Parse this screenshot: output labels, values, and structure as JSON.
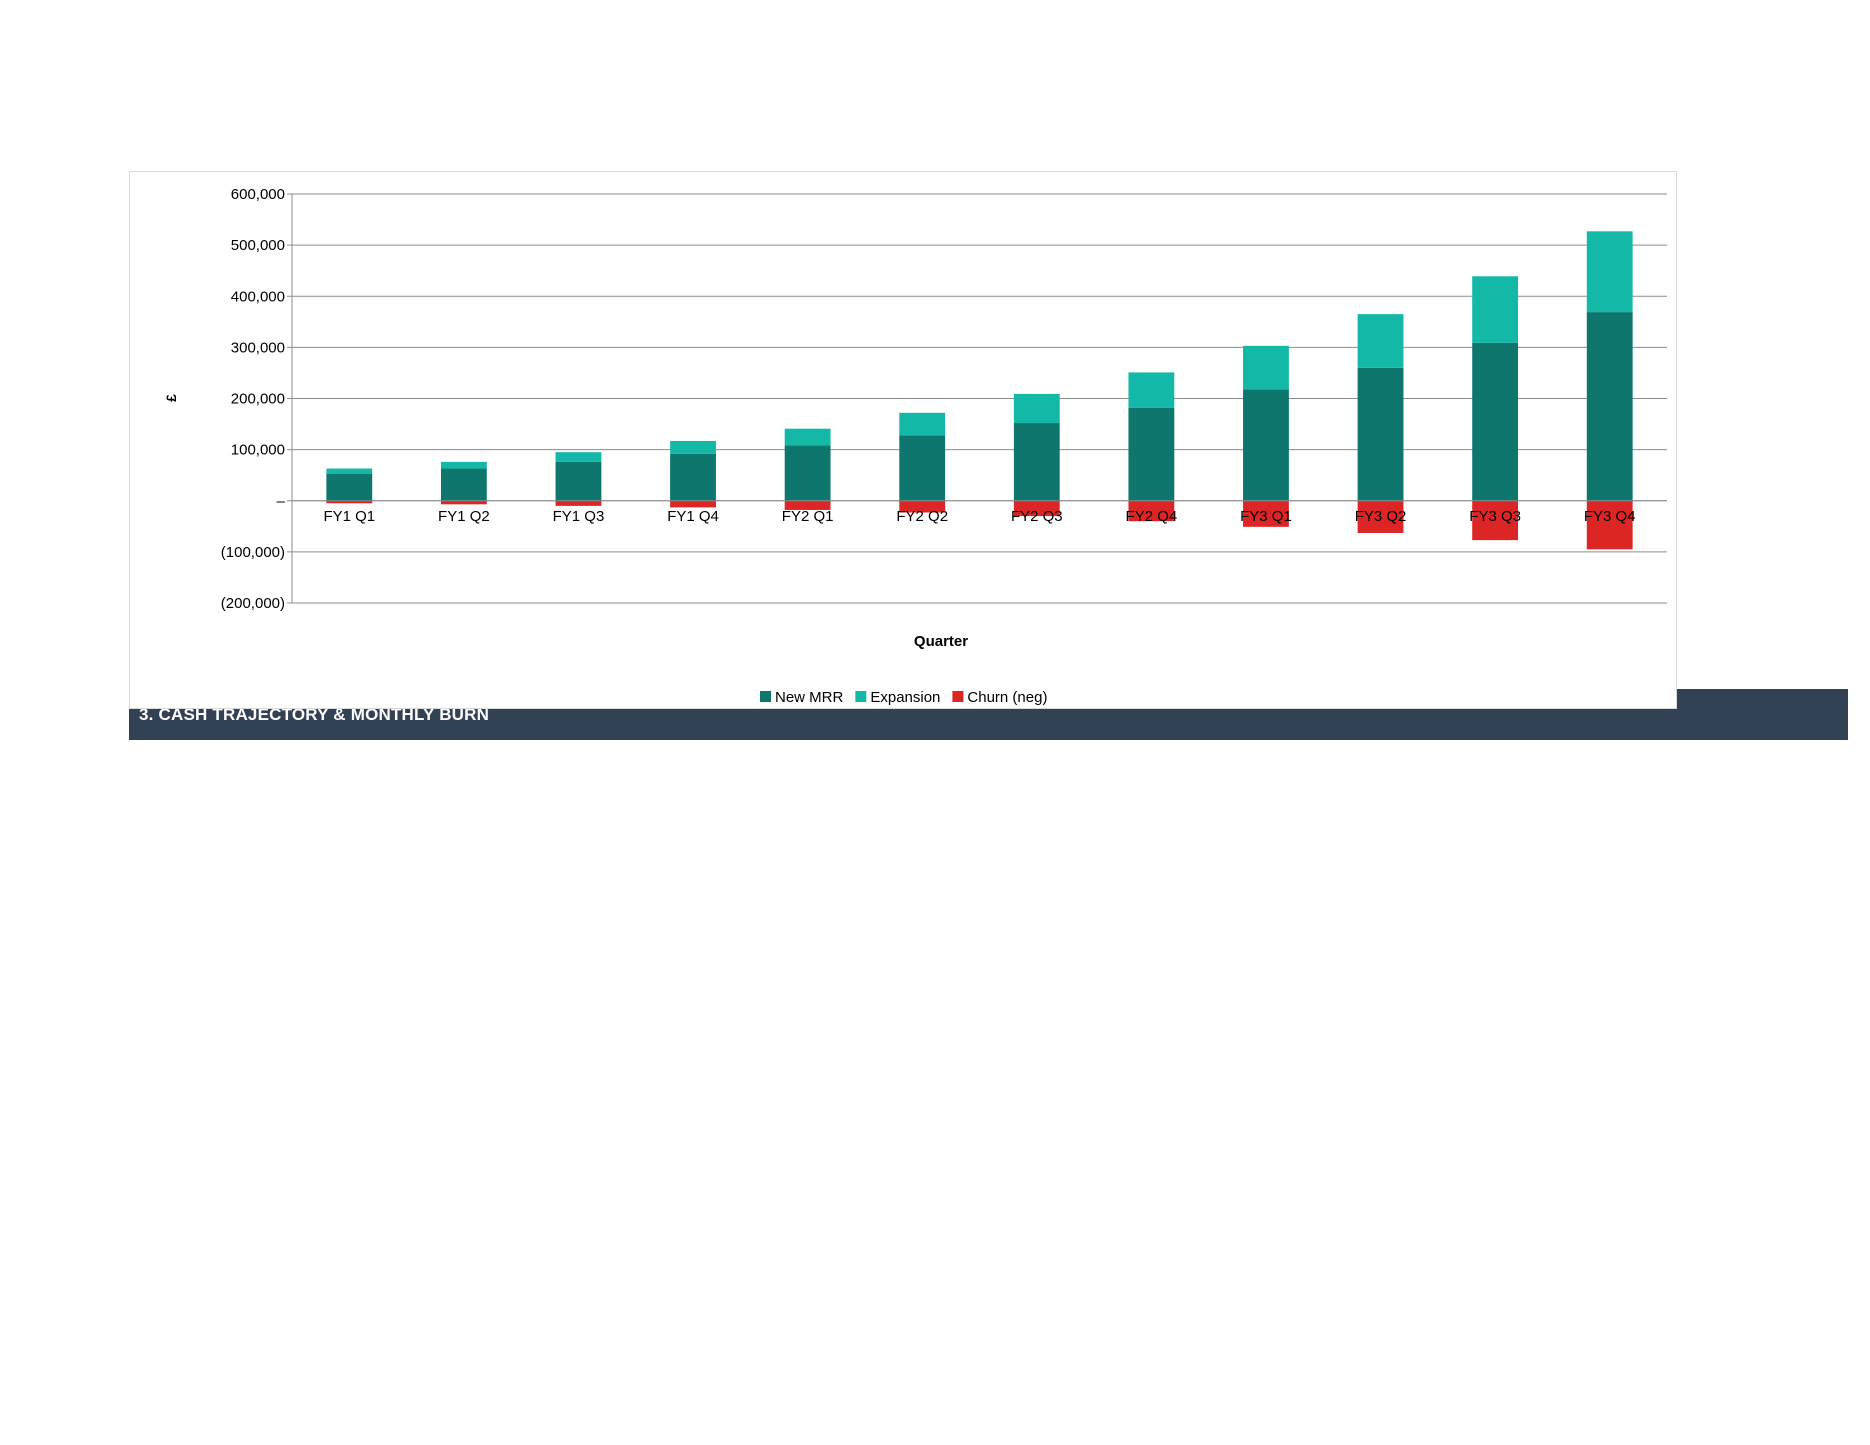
{
  "section": {
    "title": "3.  CASH TRAJECTORY  &  MONTHLY BURN",
    "color": "#334155"
  },
  "chart_data": {
    "type": "bar",
    "stacked": true,
    "categories": [
      "FY1 Q1",
      "FY1 Q2",
      "FY1 Q3",
      "FY1 Q4",
      "FY2 Q1",
      "FY2 Q2",
      "FY2 Q3",
      "FY2 Q4",
      "FY3 Q1",
      "FY3 Q2",
      "FY3 Q3",
      "FY3 Q4"
    ],
    "series": [
      {
        "name": "New MRR",
        "color": "#0f766e",
        "values": [
          53000,
          63000,
          76000,
          92000,
          108000,
          128000,
          152000,
          182000,
          218000,
          260000,
          309000,
          369000
        ]
      },
      {
        "name": "Expansion",
        "color": "#14b8a6",
        "values": [
          10000,
          13000,
          19000,
          25000,
          33000,
          44000,
          57000,
          69000,
          85000,
          105000,
          130000,
          158000
        ]
      },
      {
        "name": "Churn (neg)",
        "color": "#dc2626",
        "values": [
          -5000,
          -7000,
          -10000,
          -13000,
          -18000,
          -23000,
          -30000,
          -40000,
          -51000,
          -63000,
          -77000,
          -95000
        ]
      }
    ],
    "title": "",
    "xlabel": "Quarter",
    "ylabel": "£",
    "ylim": [
      -200000,
      600000
    ],
    "yticks": [
      -200000,
      -100000,
      0,
      100000,
      200000,
      300000,
      400000,
      500000,
      600000
    ],
    "ytick_labels": [
      "(200,000)",
      "(100,000)",
      "–",
      "100,000",
      "200,000",
      "300,000",
      "400,000",
      "500,000",
      "600,000"
    ],
    "grid": true,
    "legend": "bottom"
  }
}
